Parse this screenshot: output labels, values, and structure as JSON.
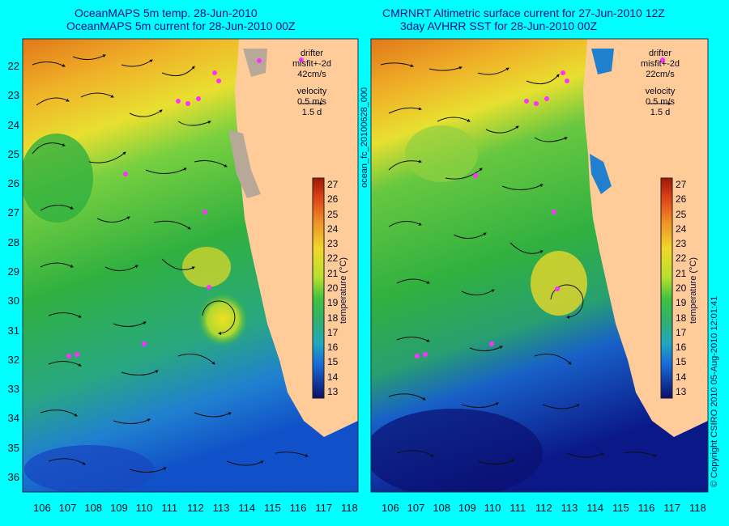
{
  "left_panel": {
    "title_line1": "OceanMAPS 5m temp. 28-Jun-2010",
    "title_line2": "OceanMAPS 5m current for 28-Jun-2010 00Z",
    "legend": {
      "drifter": "drifter",
      "misfit": "misfit+-2d",
      "speed": "42cm/s",
      "velocity": "velocity",
      "vel_value": "0.5 m/s",
      "vel_time": "1.5 d"
    }
  },
  "right_panel": {
    "title_line1": "CMRNRT Altimetric surface current for 27-Jun-2010 12Z",
    "title_line2": "3day AVHRR SST for 28-Jun-2010 00Z",
    "legend": {
      "drifter": "drifter",
      "misfit": "misfit+-2d",
      "speed": "22cm/s",
      "velocity": "velocity",
      "vel_value": "0.5 m/s",
      "vel_time": "1.5 d"
    }
  },
  "side_label_left": "ocean_fc_20100628_000",
  "side_label_right": "© Copyright CSIRO 2010   05-Aug-2010 12:01:41",
  "colorbar": {
    "label": "temperature (°C)",
    "ticks": [
      "27",
      "26",
      "25",
      "24",
      "23",
      "22",
      "21",
      "20",
      "19",
      "18",
      "17",
      "16",
      "15",
      "14",
      "13"
    ]
  },
  "axes": {
    "lon_ticks": [
      "106",
      "107",
      "108",
      "109",
      "110",
      "111",
      "112",
      "113",
      "114",
      "115",
      "116",
      "117",
      "118"
    ],
    "lat_ticks": [
      "22",
      "23",
      "24",
      "25",
      "26",
      "27",
      "28",
      "29",
      "30",
      "31",
      "32",
      "33",
      "34",
      "35",
      "36"
    ]
  },
  "colors": {
    "background": "#00ffff",
    "land": "#ffcc99",
    "warm": "#e88420",
    "mid": "#e8d820",
    "cool": "#30b040",
    "cold": "#1060d0"
  }
}
